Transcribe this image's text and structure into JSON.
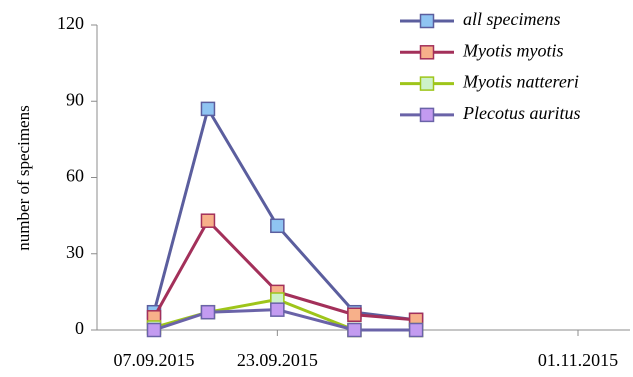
{
  "chart_data": {
    "type": "line",
    "title": "",
    "xlabel": "",
    "ylabel": "number of specimens",
    "ylim": [
      0,
      120
    ],
    "y_ticks": [
      0,
      30,
      60,
      90,
      120
    ],
    "x_tick_labels": [
      "07.09.2015",
      "23.09.2015",
      "01.11.2015"
    ],
    "grid": false,
    "legend_position": "top-right",
    "x": [
      "07.09.2015",
      "14.09.2015",
      "23.09.2015",
      "03.10.2015",
      "11.10.2015"
    ],
    "series": [
      {
        "name": "all specimens",
        "values": [
          7,
          87,
          41,
          7,
          4
        ],
        "line_color": "#5b5e9e",
        "marker_fill": "#8fc4f2"
      },
      {
        "name": "Myotis myotis",
        "values": [
          5,
          43,
          15,
          6,
          4
        ],
        "line_color": "#a3305a",
        "marker_fill": "#f7b08a"
      },
      {
        "name": "Myotis nattereri",
        "values": [
          1,
          7,
          12,
          0,
          0
        ],
        "line_color": "#9ec51a",
        "marker_fill": "#cdf2c9"
      },
      {
        "name": "Plecotus auritus",
        "values": [
          0,
          7,
          8,
          0,
          0
        ],
        "line_color": "#6a63a8",
        "marker_fill": "#c39bf0"
      }
    ]
  }
}
